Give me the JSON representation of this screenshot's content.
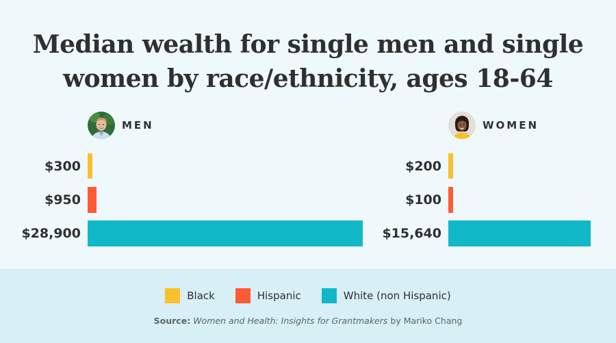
{
  "chart_data": [
    {
      "type": "bar",
      "orientation": "horizontal",
      "panel_label": "MEN",
      "categories": [
        "Black",
        "Hispanic",
        "White (non Hispanic)"
      ],
      "values": [
        300,
        950,
        28900
      ],
      "value_labels": [
        "$300",
        "$950",
        "$28,900"
      ]
    },
    {
      "type": "bar",
      "orientation": "horizontal",
      "panel_label": "WOMEN",
      "categories": [
        "Black",
        "Hispanic",
        "White (non Hispanic)"
      ],
      "values": [
        200,
        100,
        15640
      ],
      "value_labels": [
        "$200",
        "$100",
        "$15,640"
      ]
    }
  ],
  "title_line1": "Median wealth for single men and single",
  "title_line2": "women by race/ethnicity, ages 18-64",
  "legend": [
    {
      "label": "Black",
      "color": "#fbc02d"
    },
    {
      "label": "Hispanic",
      "color": "#ff5a36"
    },
    {
      "label": "White (non Hispanic)",
      "color": "#11b8c8"
    }
  ],
  "source": {
    "prefix": "Source:",
    "title": "Women and Health: Insights for Grantmakers",
    "suffix": "by Mariko Chang"
  },
  "men_avatar_icon": "man-portrait-icon",
  "women_avatar_icon": "woman-portrait-icon"
}
